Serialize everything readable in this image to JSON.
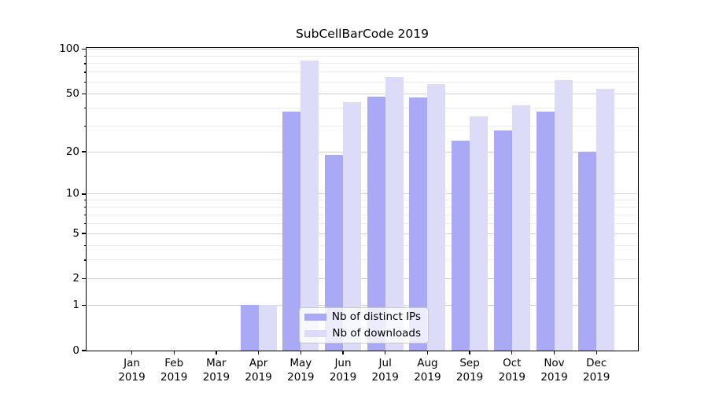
{
  "title": "SubCellBarCode 2019",
  "chart_data": {
    "type": "bar",
    "title": "SubCellBarCode 2019",
    "categories": [
      "Jan",
      "Feb",
      "Mar",
      "Apr",
      "May",
      "Jun",
      "Jul",
      "Aug",
      "Sep",
      "Oct",
      "Nov",
      "Dec"
    ],
    "category_year": "2019",
    "series": [
      {
        "name": "Nb of distinct IPs",
        "color": "#a9a9f6",
        "values": [
          0,
          0,
          0,
          1,
          38,
          19,
          48,
          47,
          24,
          28,
          38,
          20
        ]
      },
      {
        "name": "Nb of downloads",
        "color": "#dcdcf8",
        "values": [
          0,
          0,
          0,
          1,
          84,
          44,
          65,
          58,
          35,
          42,
          62,
          54
        ]
      }
    ],
    "yscale": "log1p",
    "ylim": [
      0,
      102
    ],
    "y_major_ticks": [
      0,
      1,
      2,
      5,
      10,
      20,
      50,
      100
    ],
    "y_minor_ticks": [
      3,
      4,
      6,
      7,
      8,
      9,
      30,
      40,
      60,
      70,
      80,
      90
    ],
    "grid": "horizontal",
    "legend_position": "inside-lower-center"
  },
  "colors": {
    "background": "#ffffff",
    "axis": "#000000",
    "grid_major": "#d0d0d0",
    "grid_minor": "#ececec",
    "legend_border": "#c8c8c8",
    "bar_distinct_ips": "#a9a9f6",
    "bar_downloads": "#dcdcf8"
  }
}
